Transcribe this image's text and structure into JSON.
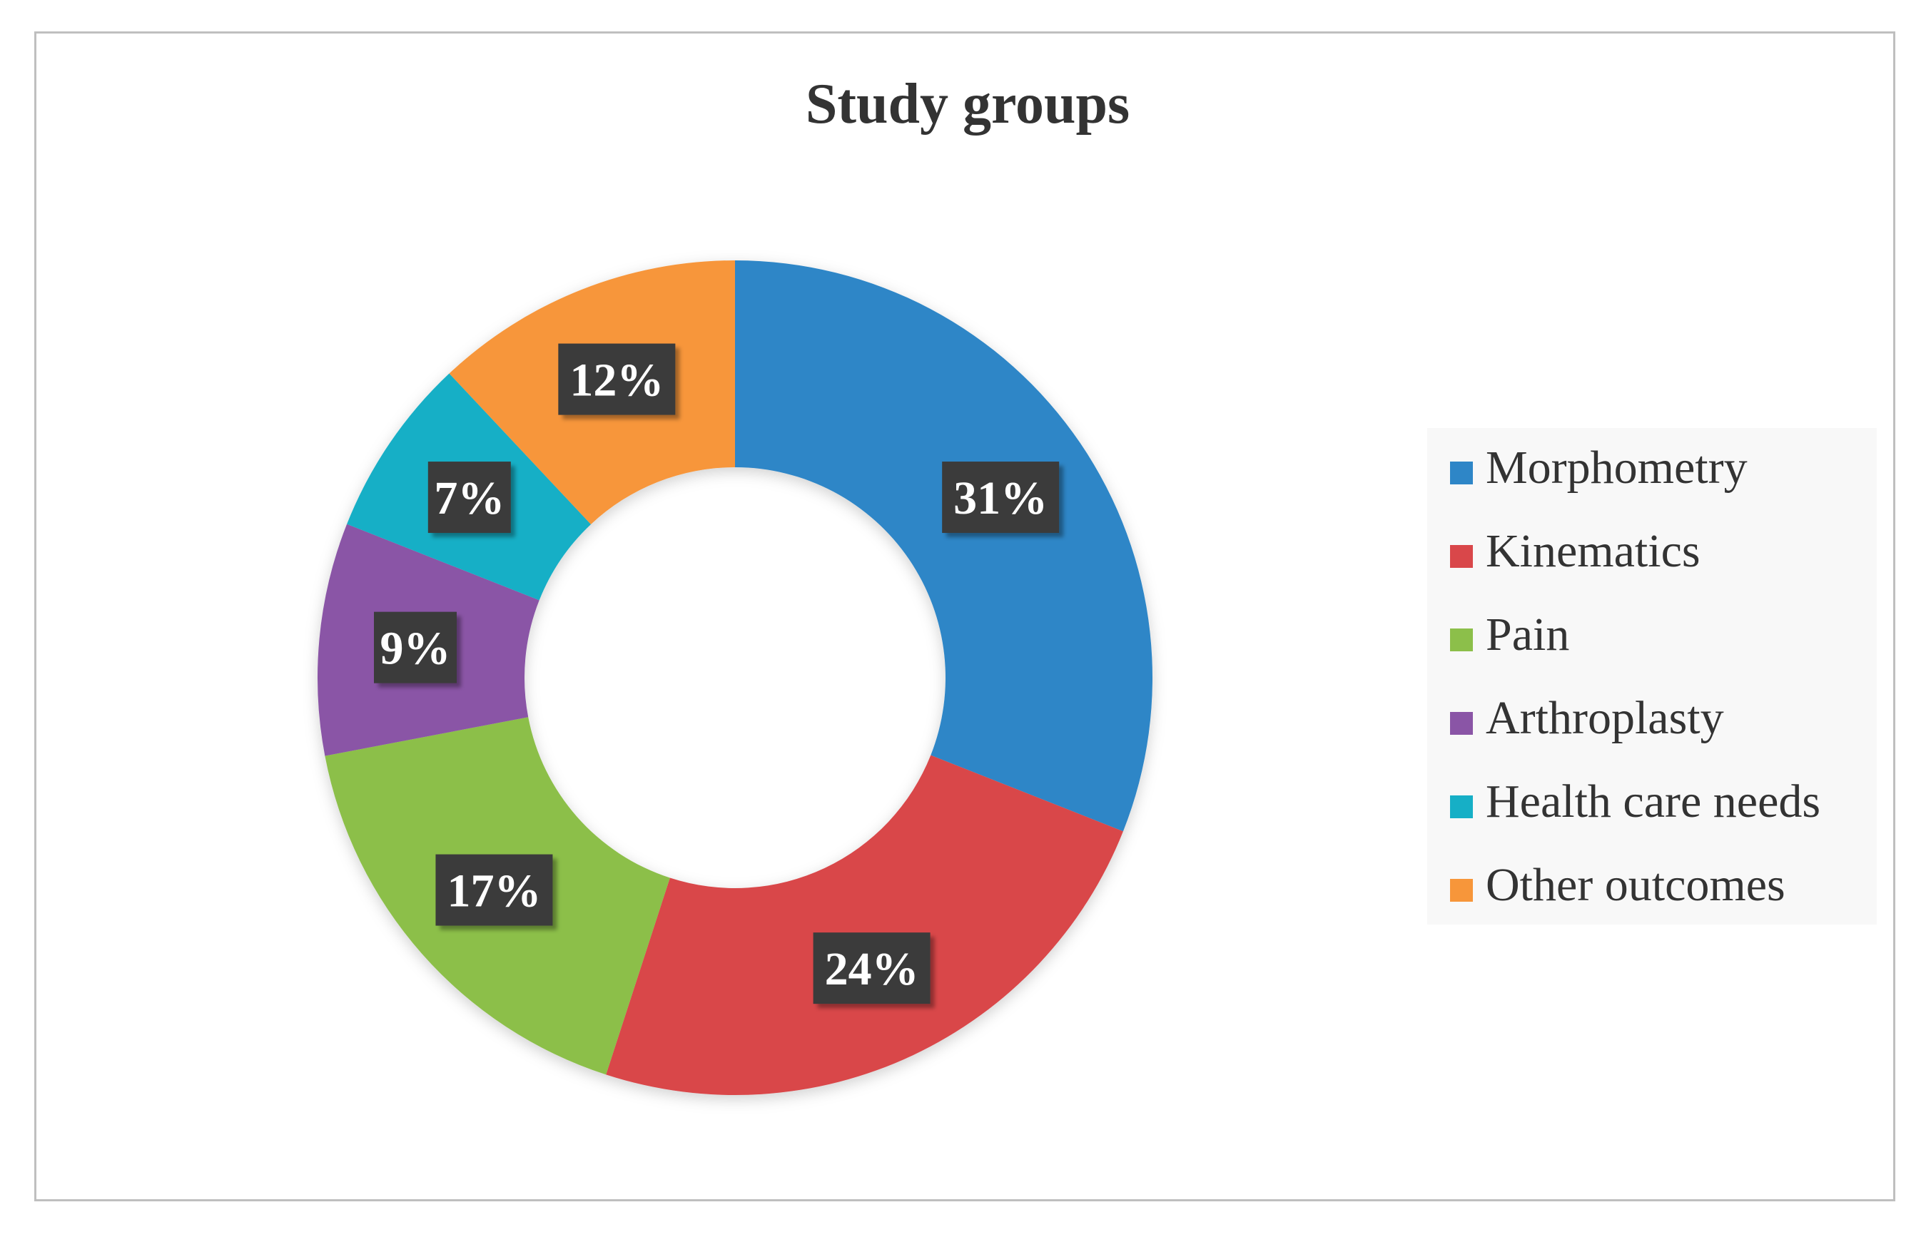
{
  "chart_data": {
    "type": "pie",
    "variant": "donut",
    "title": "Study groups",
    "categories": [
      "Morphometry",
      "Kinematics",
      "Pain",
      "Arthroplasty",
      "Health care needs",
      "Other outcomes"
    ],
    "values": [
      31,
      24,
      17,
      9,
      7,
      12
    ],
    "value_labels": [
      "31%",
      "24%",
      "17%",
      "9%",
      "7%",
      "12%"
    ],
    "colors": [
      "#2E86C7",
      "#D9474A",
      "#8CBF4A",
      "#8A55A6",
      "#16AFC6",
      "#F7963A"
    ],
    "legend_position": "right",
    "start_angle_deg": 0,
    "direction": "clockwise"
  }
}
